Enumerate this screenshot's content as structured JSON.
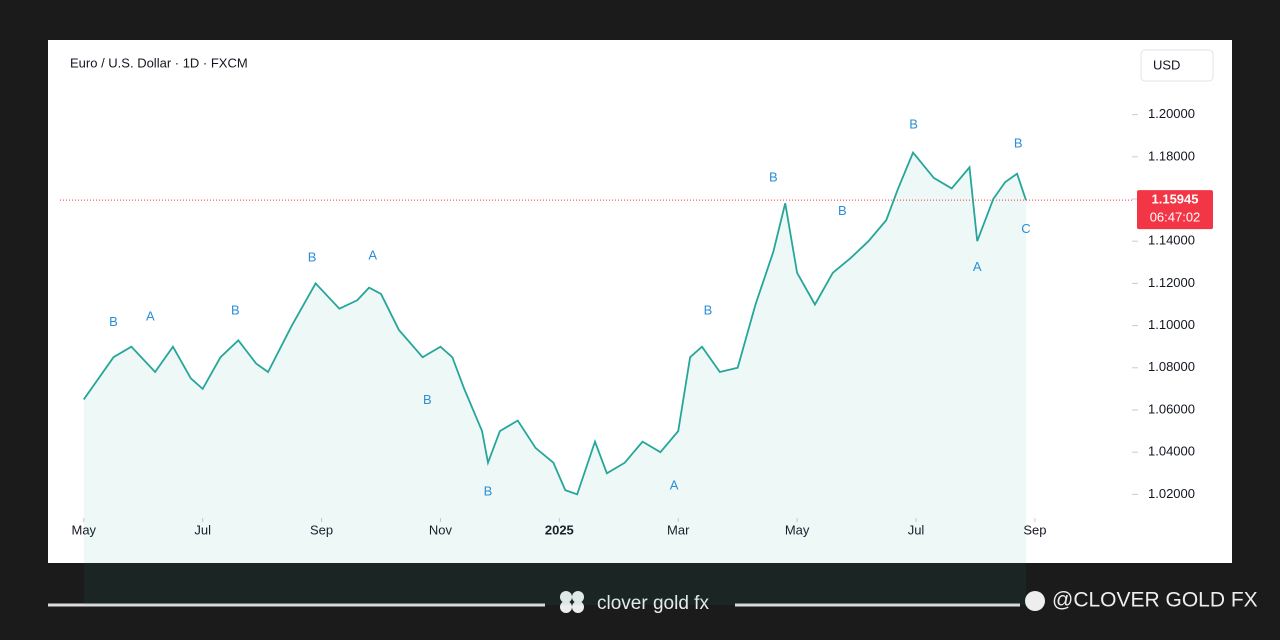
{
  "chart_data": {
    "type": "line",
    "title": "Euro / U.S. Dollar · 1D · FXCM",
    "currency": "USD",
    "color": "#26a69a",
    "x": [
      0,
      0.5,
      0.8,
      1.2,
      1.5,
      1.8,
      2,
      2.3,
      2.6,
      2.9,
      3.1,
      3.5,
      3.8,
      3.9,
      4.3,
      4.6,
      4.8,
      5,
      5.3,
      5.7,
      6,
      6.2,
      6.4,
      6.7,
      6.8,
      7,
      7.3,
      7.6,
      7.9,
      8.1,
      8.3,
      8.6,
      8.8,
      9.1,
      9.4,
      9.7,
      10,
      10.2,
      10.4,
      10.7,
      11,
      11.3,
      11.6,
      11.8,
      12,
      12.3,
      12.6,
      12.9,
      13.2,
      13.5,
      13.7,
      13.95,
      14.3,
      14.6,
      14.9,
      15.03,
      15.3,
      15.5,
      15.7,
      15.85
    ],
    "values": [
      1.065,
      1.085,
      1.09,
      1.078,
      1.09,
      1.075,
      1.07,
      1.085,
      1.093,
      1.082,
      1.078,
      1.1,
      1.115,
      1.12,
      1.108,
      1.112,
      1.118,
      1.115,
      1.098,
      1.085,
      1.09,
      1.085,
      1.07,
      1.05,
      1.035,
      1.05,
      1.055,
      1.042,
      1.035,
      1.022,
      1.02,
      1.045,
      1.03,
      1.035,
      1.045,
      1.04,
      1.05,
      1.085,
      1.09,
      1.078,
      1.08,
      1.11,
      1.135,
      1.158,
      1.125,
      1.11,
      1.125,
      1.132,
      1.14,
      1.15,
      1.165,
      1.182,
      1.17,
      1.165,
      1.175,
      1.14,
      1.16,
      1.168,
      1.172,
      1.15945
    ],
    "xlim": [
      -0.4,
      17.6
    ],
    "ylim": [
      0.996,
      1.233
    ],
    "xticks": [
      {
        "value": 0,
        "label": "May"
      },
      {
        "value": 2,
        "label": "Jul"
      },
      {
        "value": 4,
        "label": "Sep"
      },
      {
        "value": 6,
        "label": "Nov"
      },
      {
        "value": 8,
        "label": "2025"
      },
      {
        "value": 10,
        "label": "Mar"
      },
      {
        "value": 12,
        "label": "May"
      },
      {
        "value": 14,
        "label": "Jul"
      },
      {
        "value": 16,
        "label": "Sep"
      }
    ],
    "yticks": [
      {
        "value": 1.02,
        "label": "1.02000"
      },
      {
        "value": 1.04,
        "label": "1.04000"
      },
      {
        "value": 1.06,
        "label": "1.06000"
      },
      {
        "value": 1.08,
        "label": "1.08000"
      },
      {
        "value": 1.1,
        "label": "1.10000"
      },
      {
        "value": 1.12,
        "label": "1.12000"
      },
      {
        "value": 1.14,
        "label": "1.14000"
      },
      {
        "value": 1.16,
        "label": "1.16000"
      },
      {
        "value": 1.18,
        "label": "1.18000"
      },
      {
        "value": 1.2,
        "label": "1.20000"
      }
    ],
    "last_price": 1.15945,
    "countdown": "06:47:02",
    "annotations": [
      {
        "text": "B",
        "x": 0.5,
        "y": 1.1015
      },
      {
        "text": "A",
        "x": 1.12,
        "y": 1.104
      },
      {
        "text": "B",
        "x": 2.55,
        "y": 1.107
      },
      {
        "text": "B",
        "x": 3.84,
        "y": 1.132
      },
      {
        "text": "A",
        "x": 4.86,
        "y": 1.133
      },
      {
        "text": "B",
        "x": 5.78,
        "y": 1.0645
      },
      {
        "text": "B",
        "x": 6.8,
        "y": 1.021
      },
      {
        "text": "A",
        "x": 9.93,
        "y": 1.024
      },
      {
        "text": "B",
        "x": 10.5,
        "y": 1.107
      },
      {
        "text": "B",
        "x": 11.6,
        "y": 1.17
      },
      {
        "text": "B",
        "x": 12.76,
        "y": 1.154
      },
      {
        "text": "B",
        "x": 13.96,
        "y": 1.195
      },
      {
        "text": "A",
        "x": 15.03,
        "y": 1.1275
      },
      {
        "text": "B",
        "x": 15.72,
        "y": 1.186
      },
      {
        "text": "C",
        "x": 15.85,
        "y": 1.1455
      }
    ]
  },
  "footer": {
    "brand": "clover gold fx",
    "handle": "@CLOVER GOLD FX"
  }
}
